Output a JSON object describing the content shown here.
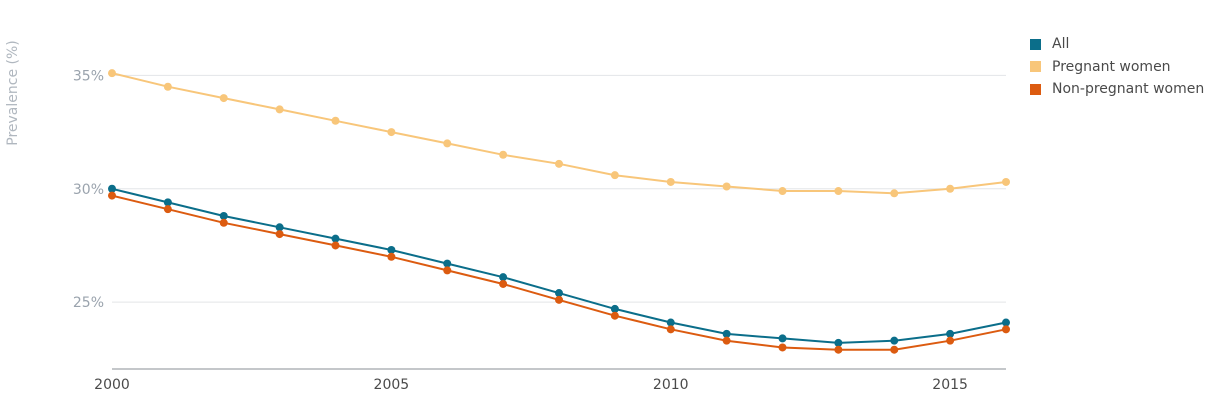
{
  "chart_data": {
    "type": "line",
    "ylabel": "Prevalence (%)",
    "xlabel": "",
    "x": [
      2000,
      2001,
      2002,
      2003,
      2004,
      2005,
      2006,
      2007,
      2008,
      2009,
      2010,
      2011,
      2012,
      2013,
      2014,
      2015,
      2016
    ],
    "xlim": [
      2000,
      2016
    ],
    "ylim": [
      22.05,
      37.4
    ],
    "x_ticks": [
      "2000",
      "2005",
      "2010",
      "2015"
    ],
    "y_ticks": [
      "35%",
      "30%",
      "25%"
    ],
    "grid": "horizontal",
    "legend_position": "top-right",
    "series": [
      {
        "name": "All",
        "color": "#0b6e8a",
        "values": [
          30.0,
          29.4,
          28.8,
          28.3,
          27.8,
          27.3,
          26.7,
          26.1,
          25.4,
          24.7,
          24.1,
          23.6,
          23.4,
          23.2,
          23.3,
          23.6,
          24.1
        ]
      },
      {
        "name": "Pregnant women",
        "color": "#f8c67a",
        "values": [
          35.1,
          34.5,
          34.0,
          33.5,
          33.0,
          32.5,
          32.0,
          31.5,
          31.1,
          30.6,
          30.3,
          30.1,
          29.9,
          29.9,
          29.8,
          30.0,
          30.3
        ]
      },
      {
        "name": "Non-pregnant women",
        "color": "#dc5b10",
        "values": [
          29.7,
          29.1,
          28.5,
          28.0,
          27.5,
          27.0,
          26.4,
          25.8,
          25.1,
          24.4,
          23.8,
          23.3,
          23.0,
          22.9,
          22.9,
          23.3,
          23.8
        ]
      }
    ]
  }
}
